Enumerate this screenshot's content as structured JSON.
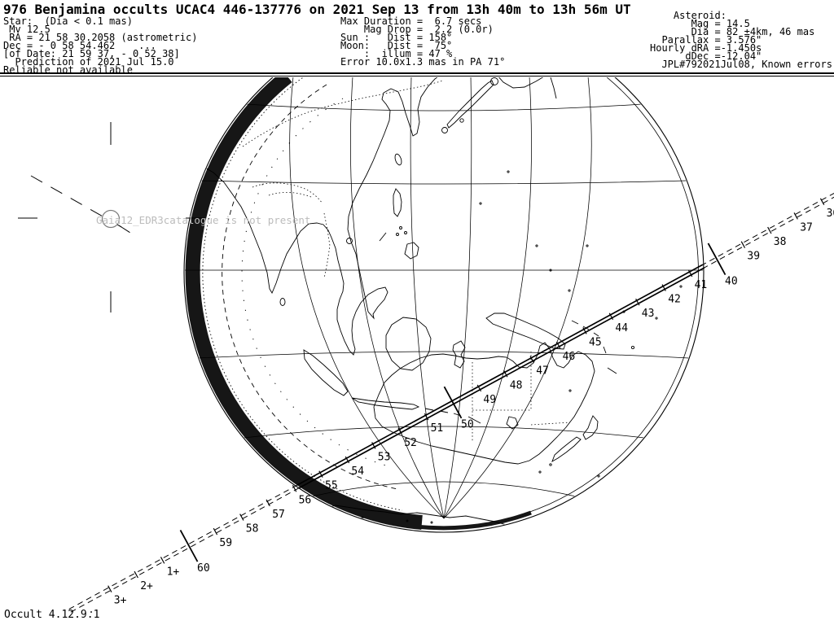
{
  "header": {
    "title": "976 Benjamina occults UCAC4 446-137776 on 2021 Sep 13 from 13h 40m to 13h 56m UT",
    "star_lines": [
      "Star:  (Dia < 0.1 mas)",
      " Mv 12.5",
      " RA = 21 58 30.2058 (astrometric)",
      "Dec = - 0 58 54.462    ...",
      "[of Date: 21 59 37, - 0 52 38]",
      "  Prediction of 2021 Jul 15.0",
      "Reliable not available"
    ],
    "event_lines": [
      "Max Duration =  6.7 secs",
      "    Mag Drop =  2.2 (0.0r)",
      "Sun :   Dist = 158°",
      "Moon:   Dist =  75°",
      "    :  illum = 47 %",
      "Error 10.0x1.3 mas in PA 71°"
    ],
    "asteroid_lines": [
      "    Asteroid:",
      "       Mag = 14.5",
      "       Dia = 82 ±4km, 46 mas",
      "  Parallax = 3.576\"",
      "Hourly dRA =-1.450s",
      "      dDec =-12.04\"",
      "  JPL#792021Jul08, Known errors"
    ]
  },
  "map": {
    "warning_text": "Gaia12_EDR3catalogue is not present",
    "warning_color": "#bcbcbc",
    "minute_labels": [
      {
        "label": "36",
        "long": false
      },
      {
        "label": "37",
        "long": false
      },
      {
        "label": "38",
        "long": false
      },
      {
        "label": "39",
        "long": false
      },
      {
        "label": "40",
        "long": true
      },
      {
        "label": "41",
        "long": false
      },
      {
        "label": "42",
        "long": false
      },
      {
        "label": "43",
        "long": false
      },
      {
        "label": "44",
        "long": false
      },
      {
        "label": "45",
        "long": false
      },
      {
        "label": "46",
        "long": false
      },
      {
        "label": "47",
        "long": false
      },
      {
        "label": "48",
        "long": false
      },
      {
        "label": "49",
        "long": false
      },
      {
        "label": "50",
        "long": true
      },
      {
        "label": "51",
        "long": false
      },
      {
        "label": "52",
        "long": false
      },
      {
        "label": "53",
        "long": false
      },
      {
        "label": "54",
        "long": false
      },
      {
        "label": "55",
        "long": false
      },
      {
        "label": "56",
        "long": false
      },
      {
        "label": "57",
        "long": false
      },
      {
        "label": "58",
        "long": false
      },
      {
        "label": "59",
        "long": false
      },
      {
        "label": "60",
        "long": true
      },
      {
        "label": "1+",
        "long": false
      },
      {
        "label": "2+",
        "long": false
      },
      {
        "label": "3+",
        "long": false
      }
    ]
  },
  "footer": {
    "version": "Occult 4.12.9.1"
  }
}
